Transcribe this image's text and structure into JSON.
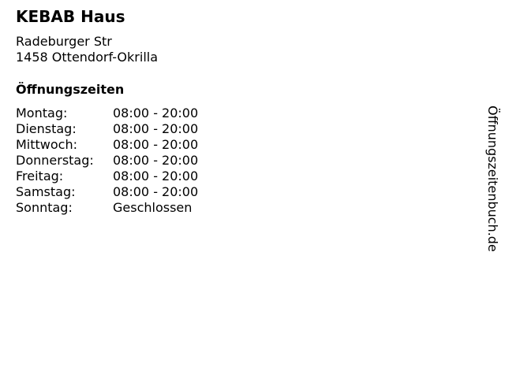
{
  "business": {
    "name": "KEBAB Haus",
    "street": "Radeburger Str",
    "city": "1458 Ottendorf-Okrilla"
  },
  "hours": {
    "heading": "Öffnungszeiten",
    "rows": [
      {
        "day": "Montag:",
        "time": "08:00 - 20:00"
      },
      {
        "day": "Dienstag:",
        "time": "08:00 - 20:00"
      },
      {
        "day": "Mittwoch:",
        "time": "08:00 - 20:00"
      },
      {
        "day": "Donnerstag:",
        "time": "08:00 - 20:00"
      },
      {
        "day": "Freitag:",
        "time": "08:00 - 20:00"
      },
      {
        "day": "Samstag:",
        "time": "08:00 - 20:00"
      },
      {
        "day": "Sonntag:",
        "time": "Geschlossen"
      }
    ]
  },
  "brand": "Öffnungszeitenbuch.de"
}
